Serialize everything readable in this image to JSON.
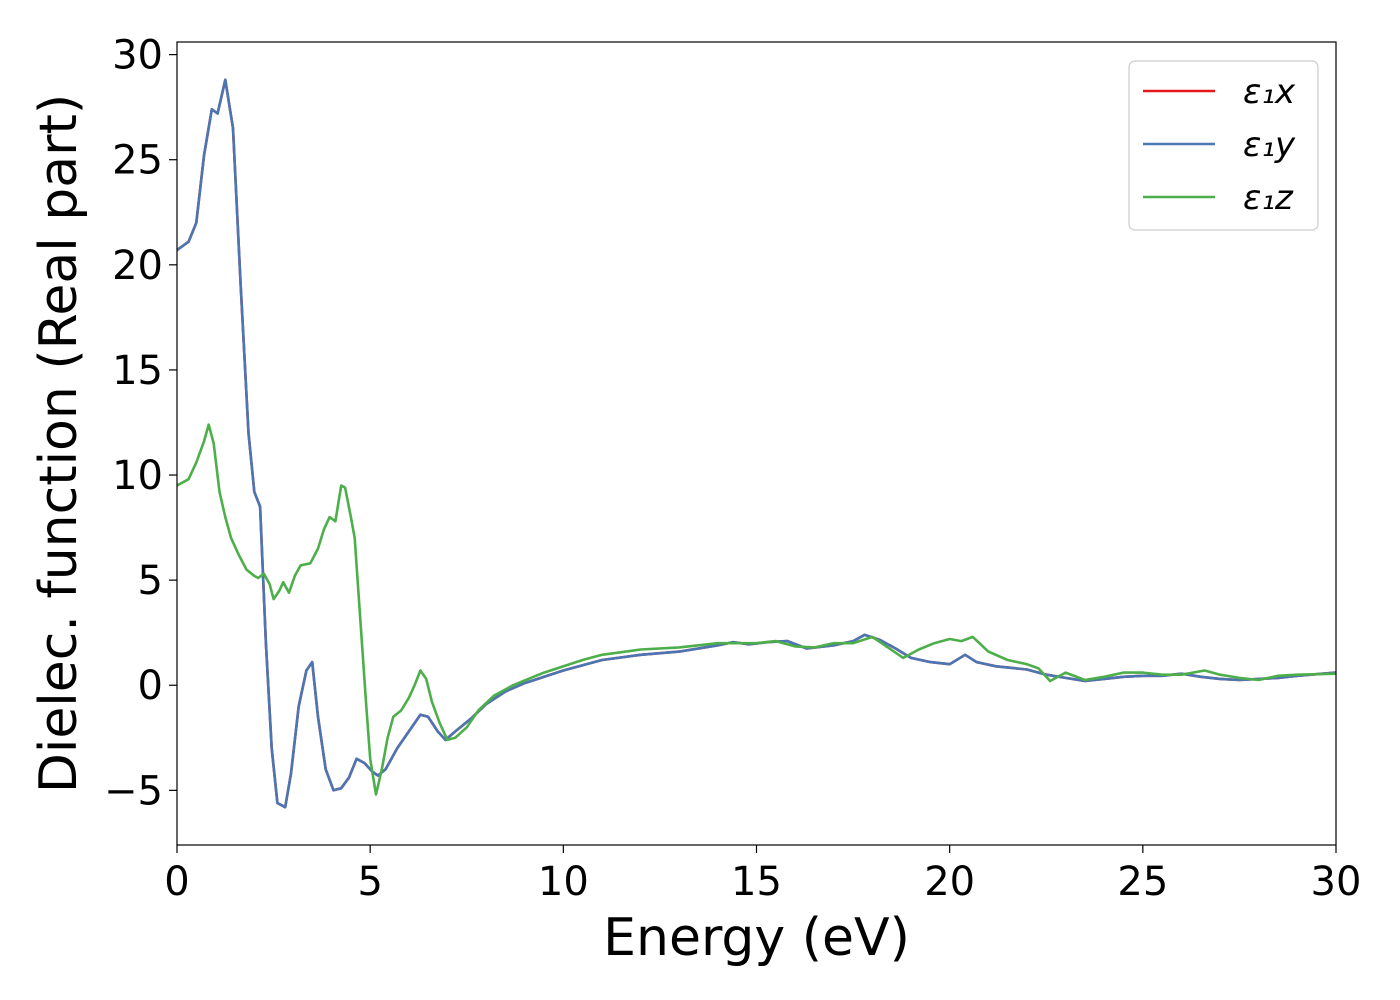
{
  "chart_data": {
    "type": "line",
    "xlabel": "Energy (eV)",
    "ylabel": "Dielec. function (Real part)",
    "xlim": [
      0,
      30
    ],
    "ylim": [
      -7.6,
      30.6
    ],
    "xticks": [
      0,
      5,
      10,
      15,
      20,
      25,
      30
    ],
    "yticks": [
      -5,
      0,
      5,
      10,
      15,
      20,
      25,
      30
    ],
    "xtick_labels": [
      "0",
      "5",
      "10",
      "15",
      "20",
      "25",
      "30"
    ],
    "ytick_labels": [
      "−5",
      "0",
      "5",
      "10",
      "15",
      "20",
      "25",
      "30"
    ],
    "grid": false,
    "legend_position": "top-right",
    "series": [
      {
        "name": "ε₁x",
        "color": "#e41a1c",
        "points": [
          [
            0,
            20.7
          ],
          [
            0.3,
            21.1
          ],
          [
            0.5,
            22.0
          ],
          [
            0.7,
            25.2
          ],
          [
            0.9,
            27.4
          ],
          [
            1.05,
            27.2
          ],
          [
            1.25,
            28.8
          ],
          [
            1.45,
            26.5
          ],
          [
            1.65,
            19.0
          ],
          [
            1.85,
            12.0
          ],
          [
            2.0,
            9.2
          ],
          [
            2.15,
            8.5
          ],
          [
            2.3,
            2.0
          ],
          [
            2.45,
            -3.0
          ],
          [
            2.6,
            -5.6
          ],
          [
            2.8,
            -5.8
          ],
          [
            2.95,
            -4.2
          ],
          [
            3.15,
            -1.0
          ],
          [
            3.35,
            0.7
          ],
          [
            3.5,
            1.1
          ],
          [
            3.65,
            -1.5
          ],
          [
            3.85,
            -4.0
          ],
          [
            4.05,
            -5.0
          ],
          [
            4.25,
            -4.9
          ],
          [
            4.45,
            -4.4
          ],
          [
            4.65,
            -3.5
          ],
          [
            4.85,
            -3.7
          ],
          [
            5.05,
            -4.1
          ],
          [
            5.2,
            -4.3
          ],
          [
            5.4,
            -4.0
          ],
          [
            5.7,
            -3.0
          ],
          [
            6.0,
            -2.2
          ],
          [
            6.3,
            -1.4
          ],
          [
            6.5,
            -1.5
          ],
          [
            6.75,
            -2.2
          ],
          [
            6.95,
            -2.6
          ],
          [
            7.2,
            -2.2
          ],
          [
            7.6,
            -1.6
          ],
          [
            8.0,
            -0.9
          ],
          [
            8.5,
            -0.3
          ],
          [
            9.0,
            0.1
          ],
          [
            10.0,
            0.7
          ],
          [
            11.0,
            1.2
          ],
          [
            12.0,
            1.45
          ],
          [
            13.0,
            1.6
          ],
          [
            14.0,
            1.9
          ],
          [
            14.4,
            2.05
          ],
          [
            14.8,
            1.95
          ],
          [
            15.3,
            2.05
          ],
          [
            15.8,
            2.1
          ],
          [
            16.3,
            1.75
          ],
          [
            17.0,
            1.9
          ],
          [
            17.5,
            2.1
          ],
          [
            17.8,
            2.4
          ],
          [
            18.2,
            2.15
          ],
          [
            18.6,
            1.75
          ],
          [
            19.0,
            1.3
          ],
          [
            19.5,
            1.1
          ],
          [
            20.0,
            1.0
          ],
          [
            20.4,
            1.45
          ],
          [
            20.7,
            1.1
          ],
          [
            21.2,
            0.9
          ],
          [
            22.0,
            0.75
          ],
          [
            22.5,
            0.5
          ],
          [
            23.0,
            0.35
          ],
          [
            23.5,
            0.2
          ],
          [
            24.0,
            0.3
          ],
          [
            24.5,
            0.4
          ],
          [
            25.0,
            0.45
          ],
          [
            25.5,
            0.45
          ],
          [
            26.0,
            0.55
          ],
          [
            26.5,
            0.4
          ],
          [
            27.0,
            0.3
          ],
          [
            27.5,
            0.25
          ],
          [
            28.0,
            0.3
          ],
          [
            28.5,
            0.35
          ],
          [
            29.0,
            0.45
          ],
          [
            30.0,
            0.6
          ]
        ]
      },
      {
        "name": "ε₁y",
        "color": "#4a76b4",
        "points": [
          [
            0,
            20.7
          ],
          [
            0.3,
            21.1
          ],
          [
            0.5,
            22.0
          ],
          [
            0.7,
            25.2
          ],
          [
            0.9,
            27.4
          ],
          [
            1.05,
            27.2
          ],
          [
            1.25,
            28.8
          ],
          [
            1.45,
            26.5
          ],
          [
            1.65,
            19.0
          ],
          [
            1.85,
            12.0
          ],
          [
            2.0,
            9.2
          ],
          [
            2.15,
            8.5
          ],
          [
            2.3,
            2.0
          ],
          [
            2.45,
            -3.0
          ],
          [
            2.6,
            -5.6
          ],
          [
            2.8,
            -5.8
          ],
          [
            2.95,
            -4.2
          ],
          [
            3.15,
            -1.0
          ],
          [
            3.35,
            0.7
          ],
          [
            3.5,
            1.1
          ],
          [
            3.65,
            -1.5
          ],
          [
            3.85,
            -4.0
          ],
          [
            4.05,
            -5.0
          ],
          [
            4.25,
            -4.9
          ],
          [
            4.45,
            -4.4
          ],
          [
            4.65,
            -3.5
          ],
          [
            4.85,
            -3.7
          ],
          [
            5.05,
            -4.1
          ],
          [
            5.2,
            -4.3
          ],
          [
            5.4,
            -4.0
          ],
          [
            5.7,
            -3.0
          ],
          [
            6.0,
            -2.2
          ],
          [
            6.3,
            -1.4
          ],
          [
            6.5,
            -1.5
          ],
          [
            6.75,
            -2.2
          ],
          [
            6.95,
            -2.6
          ],
          [
            7.2,
            -2.2
          ],
          [
            7.6,
            -1.6
          ],
          [
            8.0,
            -0.9
          ],
          [
            8.5,
            -0.3
          ],
          [
            9.0,
            0.1
          ],
          [
            10.0,
            0.7
          ],
          [
            11.0,
            1.2
          ],
          [
            12.0,
            1.45
          ],
          [
            13.0,
            1.6
          ],
          [
            14.0,
            1.9
          ],
          [
            14.4,
            2.05
          ],
          [
            14.8,
            1.95
          ],
          [
            15.3,
            2.05
          ],
          [
            15.8,
            2.1
          ],
          [
            16.3,
            1.75
          ],
          [
            17.0,
            1.9
          ],
          [
            17.5,
            2.1
          ],
          [
            17.8,
            2.4
          ],
          [
            18.2,
            2.15
          ],
          [
            18.6,
            1.75
          ],
          [
            19.0,
            1.3
          ],
          [
            19.5,
            1.1
          ],
          [
            20.0,
            1.0
          ],
          [
            20.4,
            1.45
          ],
          [
            20.7,
            1.1
          ],
          [
            21.2,
            0.9
          ],
          [
            22.0,
            0.75
          ],
          [
            22.5,
            0.5
          ],
          [
            23.0,
            0.35
          ],
          [
            23.5,
            0.2
          ],
          [
            24.0,
            0.3
          ],
          [
            24.5,
            0.4
          ],
          [
            25.0,
            0.45
          ],
          [
            25.5,
            0.45
          ],
          [
            26.0,
            0.55
          ],
          [
            26.5,
            0.4
          ],
          [
            27.0,
            0.3
          ],
          [
            27.5,
            0.25
          ],
          [
            28.0,
            0.3
          ],
          [
            28.5,
            0.35
          ],
          [
            29.0,
            0.45
          ],
          [
            30.0,
            0.6
          ]
        ]
      },
      {
        "name": "ε₁z",
        "color": "#4daf4a",
        "points": [
          [
            0,
            9.5
          ],
          [
            0.3,
            9.8
          ],
          [
            0.5,
            10.6
          ],
          [
            0.7,
            11.6
          ],
          [
            0.82,
            12.4
          ],
          [
            0.95,
            11.5
          ],
          [
            1.1,
            9.2
          ],
          [
            1.25,
            8.0
          ],
          [
            1.4,
            7.0
          ],
          [
            1.6,
            6.2
          ],
          [
            1.8,
            5.5
          ],
          [
            2.0,
            5.2
          ],
          [
            2.1,
            5.1
          ],
          [
            2.25,
            5.3
          ],
          [
            2.4,
            4.8
          ],
          [
            2.5,
            4.1
          ],
          [
            2.65,
            4.5
          ],
          [
            2.75,
            4.9
          ],
          [
            2.9,
            4.4
          ],
          [
            3.05,
            5.2
          ],
          [
            3.2,
            5.7
          ],
          [
            3.45,
            5.8
          ],
          [
            3.65,
            6.5
          ],
          [
            3.8,
            7.4
          ],
          [
            3.95,
            8.0
          ],
          [
            4.1,
            7.8
          ],
          [
            4.25,
            9.5
          ],
          [
            4.35,
            9.4
          ],
          [
            4.5,
            8.0
          ],
          [
            4.6,
            7.0
          ],
          [
            4.75,
            3.0
          ],
          [
            4.9,
            -1.0
          ],
          [
            5.0,
            -3.5
          ],
          [
            5.15,
            -5.2
          ],
          [
            5.3,
            -4.0
          ],
          [
            5.45,
            -2.5
          ],
          [
            5.6,
            -1.5
          ],
          [
            5.8,
            -1.2
          ],
          [
            6.0,
            -0.6
          ],
          [
            6.15,
            0.0
          ],
          [
            6.3,
            0.7
          ],
          [
            6.45,
            0.3
          ],
          [
            6.6,
            -0.8
          ],
          [
            6.8,
            -1.8
          ],
          [
            7.0,
            -2.6
          ],
          [
            7.2,
            -2.5
          ],
          [
            7.5,
            -2.0
          ],
          [
            7.8,
            -1.2
          ],
          [
            8.2,
            -0.5
          ],
          [
            8.7,
            0.0
          ],
          [
            9.5,
            0.6
          ],
          [
            10.5,
            1.2
          ],
          [
            11.0,
            1.45
          ],
          [
            12.0,
            1.7
          ],
          [
            13.0,
            1.8
          ],
          [
            14.0,
            2.0
          ],
          [
            15.0,
            2.0
          ],
          [
            15.5,
            2.1
          ],
          [
            16.0,
            1.85
          ],
          [
            16.5,
            1.8
          ],
          [
            17.0,
            2.0
          ],
          [
            17.5,
            2.0
          ],
          [
            18.0,
            2.3
          ],
          [
            18.4,
            1.8
          ],
          [
            18.8,
            1.3
          ],
          [
            19.2,
            1.7
          ],
          [
            19.6,
            2.0
          ],
          [
            20.0,
            2.2
          ],
          [
            20.3,
            2.1
          ],
          [
            20.6,
            2.3
          ],
          [
            21.0,
            1.6
          ],
          [
            21.5,
            1.2
          ],
          [
            22.0,
            1.0
          ],
          [
            22.3,
            0.8
          ],
          [
            22.6,
            0.2
          ],
          [
            23.0,
            0.6
          ],
          [
            23.5,
            0.25
          ],
          [
            24.0,
            0.4
          ],
          [
            24.5,
            0.6
          ],
          [
            25.0,
            0.6
          ],
          [
            25.5,
            0.5
          ],
          [
            26.0,
            0.5
          ],
          [
            26.6,
            0.7
          ],
          [
            27.0,
            0.5
          ],
          [
            27.5,
            0.35
          ],
          [
            28.0,
            0.25
          ],
          [
            28.5,
            0.45
          ],
          [
            29.0,
            0.5
          ],
          [
            30.0,
            0.55
          ]
        ]
      }
    ]
  }
}
